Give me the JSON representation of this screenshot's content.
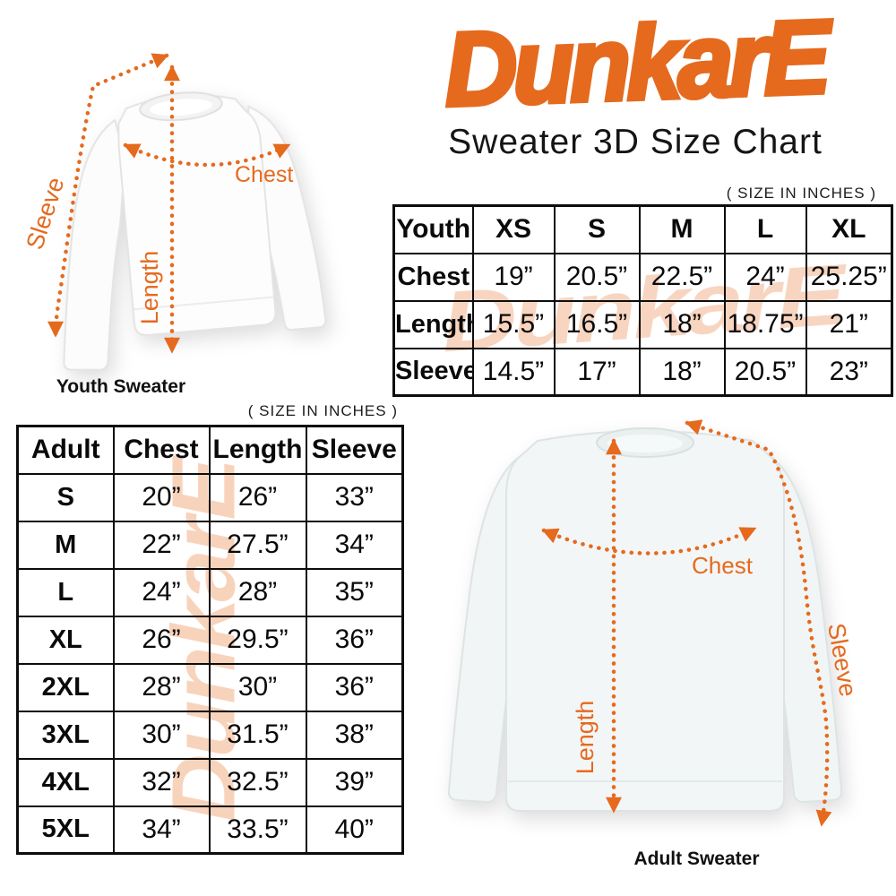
{
  "brand": {
    "logo_text": "DunkarE",
    "title": "Sweater 3D Size Chart"
  },
  "colors": {
    "accent_orange": "#e56a1e",
    "watermark_peach": "#f2a87c",
    "table_border": "#0d0d0d"
  },
  "watermark_text": "DunkarE",
  "youth_section": {
    "size_note": "( SIZE IN INCHES )",
    "caption": "Youth Sweater",
    "labels": {
      "sleeve": "Sleeve",
      "length": "Length",
      "chest": "Chest"
    },
    "table": {
      "header": [
        "Youth",
        "XS",
        "S",
        "M",
        "L",
        "XL"
      ],
      "rows": [
        [
          "Chest",
          "19”",
          "20.5”",
          "22.5”",
          "24”",
          "25.25”"
        ],
        [
          "Length",
          "15.5”",
          "16.5”",
          "18”",
          "18.75”",
          "21”"
        ],
        [
          "Sleeve",
          "14.5”",
          "17”",
          "18”",
          "20.5”",
          "23”"
        ]
      ]
    }
  },
  "adult_section": {
    "size_note": "( SIZE IN INCHES )",
    "caption": "Adult Sweater",
    "labels": {
      "sleeve": "Sleeve",
      "length": "Length",
      "chest": "Chest"
    },
    "table": {
      "header": [
        "Adult",
        "Chest",
        "Length",
        "Sleeve"
      ],
      "rows": [
        [
          "S",
          "20”",
          "26”",
          "33”"
        ],
        [
          "M",
          "22”",
          "27.5”",
          "34”"
        ],
        [
          "L",
          "24”",
          "28”",
          "35”"
        ],
        [
          "XL",
          "26”",
          "29.5”",
          "36”"
        ],
        [
          "2XL",
          "28”",
          "30”",
          "36”"
        ],
        [
          "3XL",
          "30”",
          "31.5”",
          "38”"
        ],
        [
          "4XL",
          "32”",
          "32.5”",
          "39”"
        ],
        [
          "5XL",
          "34”",
          "33.5”",
          "40”"
        ]
      ]
    }
  }
}
